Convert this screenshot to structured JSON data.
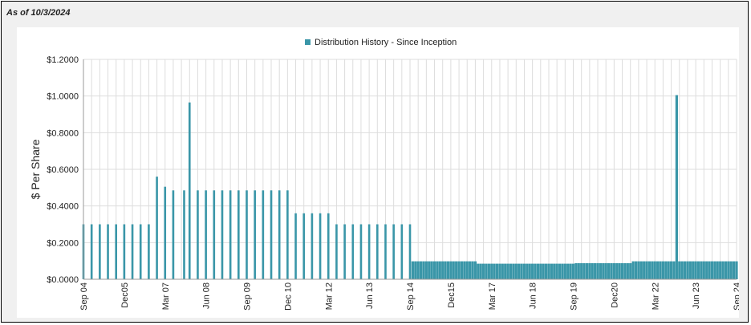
{
  "header": {
    "as_of": "As of 10/3/2024"
  },
  "colors": {
    "bar": "#3a96a8",
    "grid": "#dddddd",
    "axis": "#999999"
  },
  "chart_data": {
    "type": "bar",
    "title": "",
    "legend": {
      "entries": [
        "Distribution History - Since Inception"
      ],
      "placement": "top-center"
    },
    "ylabel": "$ Per Share",
    "xlabel": "",
    "ylim": [
      0,
      1.2
    ],
    "yticks": [
      0,
      0.2,
      0.4,
      0.6,
      0.8,
      1.0,
      1.2
    ],
    "ytick_labels": [
      "$0.0000",
      "$0.2000",
      "$0.4000",
      "$0.6000",
      "$0.8000",
      "$1.0000",
      "$1.2000"
    ],
    "xtick_labels": [
      "Sep 04",
      "Dec05",
      "Mar 07",
      "Jun 08",
      "Sep 09",
      "Dec 10",
      "Mar 12",
      "Jun 13",
      "Sep 14",
      "Dec15",
      "Mar 17",
      "Jun 18",
      "Sep 19",
      "Dec20",
      "Mar 22",
      "Jun 23",
      "Sep 24"
    ],
    "grid": true,
    "series": [
      {
        "name": "Distribution History - Since Inception",
        "points": [
          [
            "2004-09",
            0.3
          ],
          [
            "2004-12",
            0.3
          ],
          [
            "2005-03",
            0.3
          ],
          [
            "2005-06",
            0.3
          ],
          [
            "2005-09",
            0.3
          ],
          [
            "2005-12",
            0.3
          ],
          [
            "2006-03",
            0.3
          ],
          [
            "2006-06",
            0.3
          ],
          [
            "2006-09",
            0.3
          ],
          [
            "2006-12",
            0.56
          ],
          [
            "2007-03",
            0.505
          ],
          [
            "2007-06",
            0.485
          ],
          [
            "2007-10",
            0.485
          ],
          [
            "2007-12",
            0.965
          ],
          [
            "2008-03",
            0.485
          ],
          [
            "2008-06",
            0.485
          ],
          [
            "2008-09",
            0.485
          ],
          [
            "2008-12",
            0.485
          ],
          [
            "2009-03",
            0.485
          ],
          [
            "2009-06",
            0.485
          ],
          [
            "2009-09",
            0.485
          ],
          [
            "2009-12",
            0.485
          ],
          [
            "2010-03",
            0.485
          ],
          [
            "2010-06",
            0.485
          ],
          [
            "2010-09",
            0.485
          ],
          [
            "2010-12",
            0.485
          ],
          [
            "2011-03",
            0.36
          ],
          [
            "2011-06",
            0.36
          ],
          [
            "2011-09",
            0.36
          ],
          [
            "2011-12",
            0.36
          ],
          [
            "2012-03",
            0.36
          ],
          [
            "2012-06",
            0.3
          ],
          [
            "2012-09",
            0.3
          ],
          [
            "2012-12",
            0.3
          ],
          [
            "2013-03",
            0.3
          ],
          [
            "2013-06",
            0.3
          ],
          [
            "2013-09",
            0.3
          ],
          [
            "2013-12",
            0.3
          ],
          [
            "2014-03",
            0.3
          ],
          [
            "2014-06",
            0.3
          ],
          [
            "2014-09",
            0.3
          ]
        ],
        "monthly_from": "2014-09",
        "monthly_to": "2024-09",
        "monthly_segments": [
          [
            "2014-09",
            "2016-09",
            0.098
          ],
          [
            "2016-10",
            "2019-09",
            0.085
          ],
          [
            "2019-10",
            "2021-06",
            0.088
          ],
          [
            "2021-07",
            "2024-09",
            0.098
          ]
        ],
        "special_points": [
          [
            "2022-11",
            1.005
          ]
        ]
      }
    ]
  }
}
